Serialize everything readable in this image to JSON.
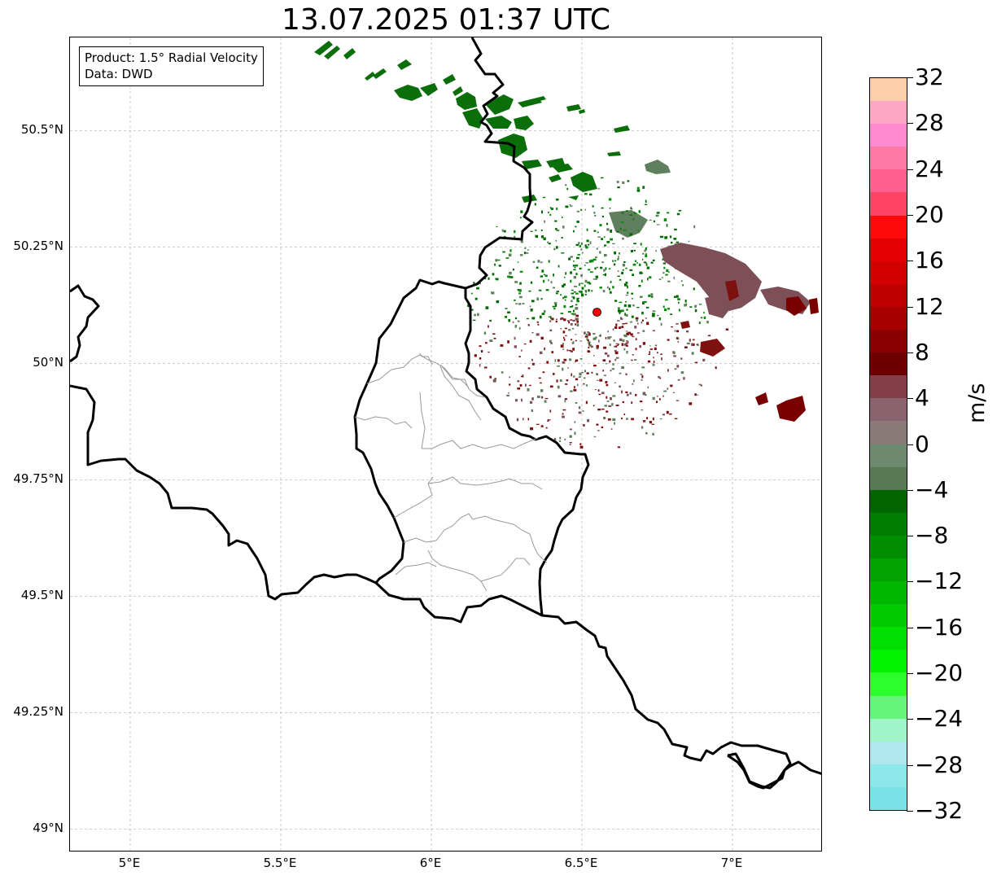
{
  "title": "13.07.2025 01:37 UTC",
  "info_box": {
    "product": "Product: 1.5° Radial Velocity",
    "data": "Data: DWD"
  },
  "map": {
    "lat_labels": [
      "50.5°N",
      "50.25°N",
      "50°N",
      "49.75°N",
      "49.5°N",
      "49.25°N",
      "49°N"
    ],
    "lon_labels": [
      "5°E",
      "5.5°E",
      "6°E",
      "6.5°E",
      "7°E"
    ],
    "lat_values": [
      50.5,
      50.25,
      50.0,
      49.75,
      49.5,
      49.25,
      49.0
    ],
    "lon_values": [
      5.0,
      5.5,
      6.0,
      6.5,
      7.0
    ],
    "extent": {
      "lon_min": 4.8,
      "lon_max": 7.3,
      "lat_min": 48.95,
      "lat_max": 50.7
    },
    "radar_site": {
      "lon": 6.55,
      "lat": 50.11,
      "color": "#ff0000"
    },
    "gridlines": true,
    "border_color": "#000000",
    "admin_border_color": "#999999"
  },
  "colorbar": {
    "unit": "m/s",
    "min": -32,
    "max": 32,
    "tick_labels": [
      "32",
      "28",
      "24",
      "20",
      "16",
      "12",
      "8",
      "4",
      "0",
      "−4",
      "−8",
      "−12",
      "−16",
      "−20",
      "−24",
      "−28",
      "−32"
    ],
    "tick_values": [
      32,
      28,
      24,
      20,
      16,
      12,
      8,
      4,
      0,
      -4,
      -8,
      -12,
      -16,
      -20,
      -24,
      -28,
      -32
    ],
    "colors_top_to_bottom": [
      "#ffcfaa",
      "#ffa7c4",
      "#ff8ad0",
      "#ff78a6",
      "#ff6090",
      "#ff4466",
      "#ff0a0a",
      "#e40000",
      "#d20000",
      "#be0000",
      "#a80000",
      "#8a0000",
      "#6c0000",
      "#834048",
      "#8b6470",
      "#8a7a78",
      "#6e8a6e",
      "#577a55",
      "#006400",
      "#007c00",
      "#008e00",
      "#00a300",
      "#00b700",
      "#00cc00",
      "#00e000",
      "#00f400",
      "#2cff2c",
      "#66f57a",
      "#9ff5c8",
      "#aee8ee",
      "#8ee8ea",
      "#78e2e6"
    ]
  },
  "legend_colors": {
    "green_dark": "#006b00",
    "green_mid": "#0a8a0a",
    "green_gray": "#5f7f5f",
    "maroon": "#7f1010",
    "dark_red": "#7a0000",
    "brown_gray": "#7d5058"
  }
}
